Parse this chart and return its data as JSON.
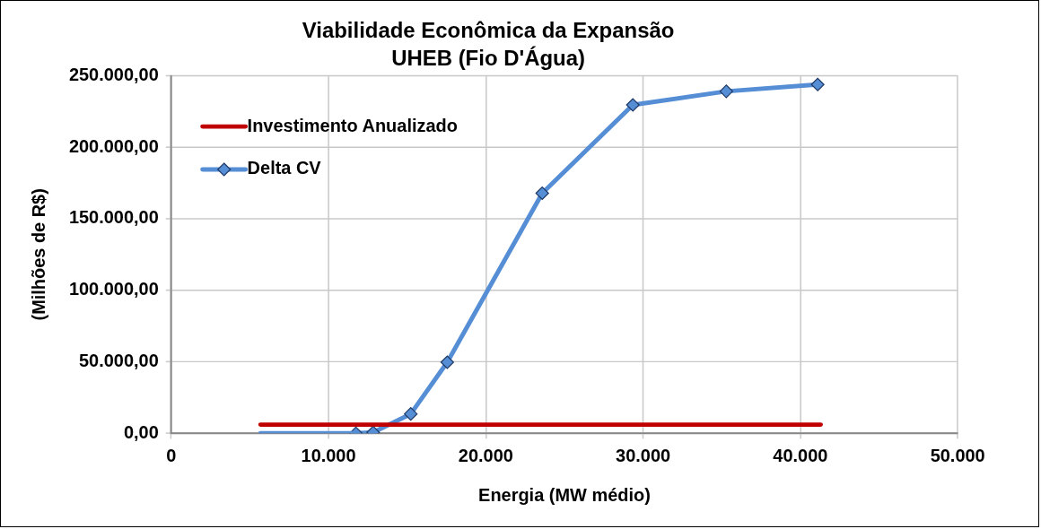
{
  "chart_data": {
    "type": "line",
    "title": "Viabilidade Econômica da Expansão",
    "subtitle": "UHEB (Fio D'Água)",
    "xlabel": "Energia (MW médio)",
    "ylabel": "(Milhões de R$)",
    "series": [
      {
        "name": "Investimento Anualizado",
        "color": "#c00000",
        "x": [
          5680,
          41290
        ],
        "values": [
          6100,
          6100
        ],
        "marker": "none"
      },
      {
        "color": "#558ed5",
        "x": [
          5680,
          11740
        ],
        "values": [
          0,
          0
        ]
      },
      {
        "name": "Delta CV",
        "color": "#558ed5",
        "x": [
          11740,
          12840,
          15230,
          17550,
          23590,
          29350,
          35290,
          41100
        ],
        "values": [
          0,
          700,
          13600,
          49700,
          167800,
          229500,
          239000,
          243800
        ],
        "marker": "diamond"
      }
    ],
    "xlim": [
      0,
      50000
    ],
    "xticks": [
      {
        "value": 0,
        "label": "0"
      },
      {
        "value": 10000,
        "label": "10.000"
      },
      {
        "value": 20000,
        "label": "20.000"
      },
      {
        "value": 30000,
        "label": "30.000"
      },
      {
        "value": 40000,
        "label": "40.000"
      },
      {
        "value": 50000,
        "label": "50.000"
      }
    ],
    "ylim": [
      0,
      250000
    ],
    "yticks": [
      {
        "value": 0,
        "label": "0,00"
      },
      {
        "value": 50000,
        "label": "50.000,00"
      },
      {
        "value": 100000,
        "label": "100.000,00"
      },
      {
        "value": 150000,
        "label": "150.000,00"
      },
      {
        "value": 200000,
        "label": "200.000,00"
      },
      {
        "value": 250000,
        "label": "250.000,00"
      }
    ],
    "grid": true,
    "legend": "top left"
  }
}
